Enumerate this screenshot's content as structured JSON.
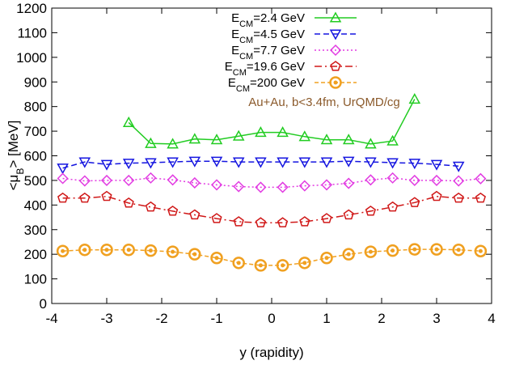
{
  "chart_data": {
    "type": "line",
    "title": "",
    "xlabel": "y (rapidity)",
    "ylabel_main": "<μ",
    "ylabel_sub": "B",
    "ylabel_tail": "> [MeV]",
    "xlim": [
      -4,
      4
    ],
    "ylim": [
      0,
      1200
    ],
    "x_ticks": [
      -4,
      -3,
      -2,
      -1,
      0,
      1,
      2,
      3,
      4
    ],
    "y_ticks": [
      0,
      100,
      200,
      300,
      400,
      500,
      600,
      700,
      800,
      900,
      1000,
      1100,
      1200
    ],
    "grid": false,
    "legend_position": "top-center",
    "annotation": "Au+Au, b<3.4fm, UrQMD/cg",
    "annotation_color": "#8b5a2b",
    "series": [
      {
        "name_prefix": "E",
        "name_sub": "CM",
        "name_suffix": "=2.4 GeV",
        "color": "#22cc22",
        "marker": "triangle-up",
        "dash": "",
        "x": [
          -2.6,
          -2.2,
          -1.8,
          -1.4,
          -1.0,
          -0.6,
          -0.2,
          0.2,
          0.6,
          1.0,
          1.4,
          1.8,
          2.2,
          2.6
        ],
        "y": [
          735,
          650,
          648,
          668,
          665,
          680,
          695,
          695,
          678,
          665,
          665,
          648,
          660,
          830
        ]
      },
      {
        "name_prefix": "E",
        "name_sub": "CM",
        "name_suffix": "=4.5 GeV",
        "color": "#1515e0",
        "marker": "triangle-down",
        "dash": "7,4",
        "x": [
          -3.8,
          -3.4,
          -3.0,
          -2.6,
          -2.2,
          -1.8,
          -1.4,
          -1.0,
          -0.6,
          -0.2,
          0.2,
          0.6,
          1.0,
          1.4,
          1.8,
          2.2,
          2.6,
          3.0,
          3.4
        ],
        "y": [
          550,
          575,
          565,
          570,
          572,
          575,
          578,
          578,
          575,
          575,
          575,
          575,
          575,
          578,
          575,
          572,
          570,
          565,
          558
        ]
      },
      {
        "name_prefix": "E",
        "name_sub": "CM",
        "name_suffix": "=7.7 GeV",
        "color": "#e23ce2",
        "marker": "diamond",
        "dash": "2,3",
        "x": [
          -3.8,
          -3.4,
          -3.0,
          -2.6,
          -2.2,
          -1.8,
          -1.4,
          -1.0,
          -0.6,
          -0.2,
          0.2,
          0.6,
          1.0,
          1.4,
          1.8,
          2.2,
          2.6,
          3.0,
          3.4,
          3.8
        ],
        "y": [
          508,
          498,
          500,
          500,
          510,
          502,
          490,
          482,
          475,
          472,
          472,
          478,
          482,
          488,
          502,
          510,
          500,
          500,
          498,
          507
        ]
      },
      {
        "name_prefix": "E",
        "name_sub": "CM",
        "name_suffix": "=19.6 GeV",
        "color": "#d01818",
        "marker": "pentagon",
        "dash": "9,4,2,4",
        "x": [
          -3.8,
          -3.4,
          -3.0,
          -2.6,
          -2.2,
          -1.8,
          -1.4,
          -1.0,
          -0.6,
          -0.2,
          0.2,
          0.6,
          1.0,
          1.4,
          1.8,
          2.2,
          2.6,
          3.0,
          3.4,
          3.8
        ],
        "y": [
          428,
          428,
          435,
          408,
          392,
          375,
          360,
          345,
          332,
          328,
          328,
          332,
          345,
          360,
          375,
          392,
          410,
          435,
          428,
          428
        ]
      },
      {
        "name_prefix": "E",
        "name_sub": "CM",
        "name_suffix": "=200 GeV",
        "color": "#f0a020",
        "marker": "circle",
        "dash": "5,3",
        "x": [
          -3.8,
          -3.4,
          -3.0,
          -2.6,
          -2.2,
          -1.8,
          -1.4,
          -1.0,
          -0.6,
          -0.2,
          0.2,
          0.6,
          1.0,
          1.4,
          1.8,
          2.2,
          2.6,
          3.0,
          3.4,
          3.8
        ],
        "y": [
          213,
          218,
          218,
          218,
          215,
          210,
          200,
          185,
          165,
          155,
          155,
          165,
          185,
          200,
          210,
          215,
          220,
          220,
          218,
          213
        ]
      }
    ]
  }
}
